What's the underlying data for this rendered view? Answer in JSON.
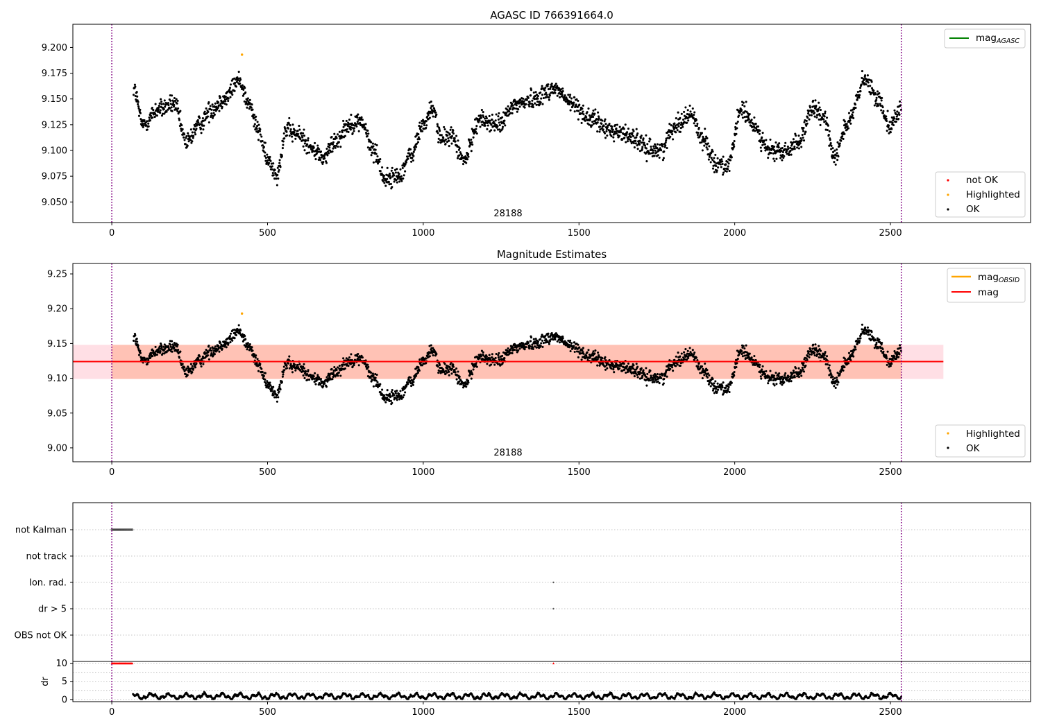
{
  "colors": {
    "ok": "#000000",
    "not_ok": "#ff0000",
    "highlighted": "#ffa500",
    "mag_agasc_line": "#008000",
    "mag_obsid_line": "#ffa500",
    "mag_line": "#ff0000",
    "obsid_marker": "#800080",
    "band_mag": "#ffc0cb",
    "band_obsid": "#ffa07a"
  },
  "chart_data": [
    {
      "type": "scatter",
      "title": "AGASC ID 766391664.0",
      "xlabel": "",
      "ylabel": "",
      "xlim": [
        -125,
        2950
      ],
      "ylim": [
        9.03,
        9.2225
      ],
      "x_ticks": [
        "0",
        "500",
        "1000",
        "1500",
        "2000",
        "2500"
      ],
      "x_tick_values": [
        0,
        500,
        1000,
        1500,
        2000,
        2500
      ],
      "y_ticks": [
        "9.050",
        "9.075",
        "9.100",
        "9.125",
        "9.150",
        "9.175",
        "9.200"
      ],
      "y_tick_values": [
        9.05,
        9.075,
        9.1,
        9.125,
        9.15,
        9.175,
        9.2
      ],
      "obsid_label": "28188",
      "obsid_label_x": 1265,
      "obsid_markers_x": [
        0,
        2535
      ],
      "ok_series_range": {
        "x": [
          70,
          2535
        ]
      },
      "highlighted_points": [
        {
          "x": 418,
          "y": 9.193
        }
      ],
      "legend_upper": [
        {
          "name": "mag",
          "subscript": "AGASC",
          "kind": "line"
        }
      ],
      "legend_lower": [
        {
          "name": "not OK",
          "kind": "marker"
        },
        {
          "name": "Highlighted",
          "kind": "marker"
        },
        {
          "name": "OK",
          "kind": "marker"
        }
      ],
      "grid": false
    },
    {
      "type": "scatter",
      "title": "Magnitude Estimates",
      "xlabel": "",
      "ylabel": "",
      "xlim": [
        -125,
        2950
      ],
      "ylim": [
        8.98,
        9.265
      ],
      "x_ticks": [
        "0",
        "500",
        "1000",
        "1500",
        "2000",
        "2500"
      ],
      "x_tick_values": [
        0,
        500,
        1000,
        1500,
        2000,
        2500
      ],
      "y_ticks": [
        "9.00",
        "9.05",
        "9.10",
        "9.15",
        "9.20",
        "9.25"
      ],
      "y_tick_values": [
        9.0,
        9.05,
        9.1,
        9.15,
        9.2,
        9.25
      ],
      "obsid_label": "28188",
      "obsid_label_x": 1265,
      "obsid_markers_x": [
        0,
        2535
      ],
      "mag_line": {
        "y": 9.124,
        "x": [
          -125,
          2670
        ]
      },
      "mag_band": {
        "y": [
          9.099,
          9.148
        ],
        "x": [
          -125,
          2670
        ]
      },
      "mag_obsid_band": {
        "y": [
          9.099,
          9.148
        ],
        "x": [
          0,
          2535
        ]
      },
      "highlighted_points": [
        {
          "x": 418,
          "y": 9.193
        }
      ],
      "legend_upper": [
        {
          "name": "mag",
          "subscript": "OBSID",
          "kind": "line"
        },
        {
          "name": "mag",
          "subscript": "",
          "kind": "line"
        }
      ],
      "legend_lower": [
        {
          "name": "Highlighted",
          "kind": "marker"
        },
        {
          "name": "OK",
          "kind": "marker"
        }
      ],
      "grid": false
    },
    {
      "type": "scatter",
      "title": "",
      "xlim": [
        -125,
        2950
      ],
      "categories": [
        "not Kalman",
        "not track",
        "Ion. rad.",
        "dr > 5",
        "OBS not OK"
      ],
      "flag_points": [
        {
          "category": "not Kalman",
          "x_range": [
            0,
            68
          ]
        },
        {
          "category": "Ion. rad.",
          "x": [
            1418
          ]
        },
        {
          "category": "dr > 5",
          "x": [
            1418
          ]
        }
      ],
      "grid": "y-dotted"
    },
    {
      "type": "scatter",
      "title": "",
      "xlabel": "",
      "ylabel": "dr",
      "xlim": [
        -125,
        2950
      ],
      "ylim": [
        -0.6,
        10.5
      ],
      "x_ticks": [
        "0",
        "500",
        "1000",
        "1500",
        "2000",
        "2500"
      ],
      "x_tick_values": [
        0,
        500,
        1000,
        1500,
        2000,
        2500
      ],
      "y_ticks": [
        "0",
        "5",
        "10"
      ],
      "y_tick_values": [
        0,
        5,
        10
      ],
      "clipped_points": [
        {
          "x_range": [
            0,
            68
          ],
          "y": 10
        },
        {
          "x": 1418,
          "y": 10
        }
      ],
      "ok_series_range": {
        "x": [
          68,
          2535
        ]
      },
      "grid": "y-dotted"
    }
  ]
}
